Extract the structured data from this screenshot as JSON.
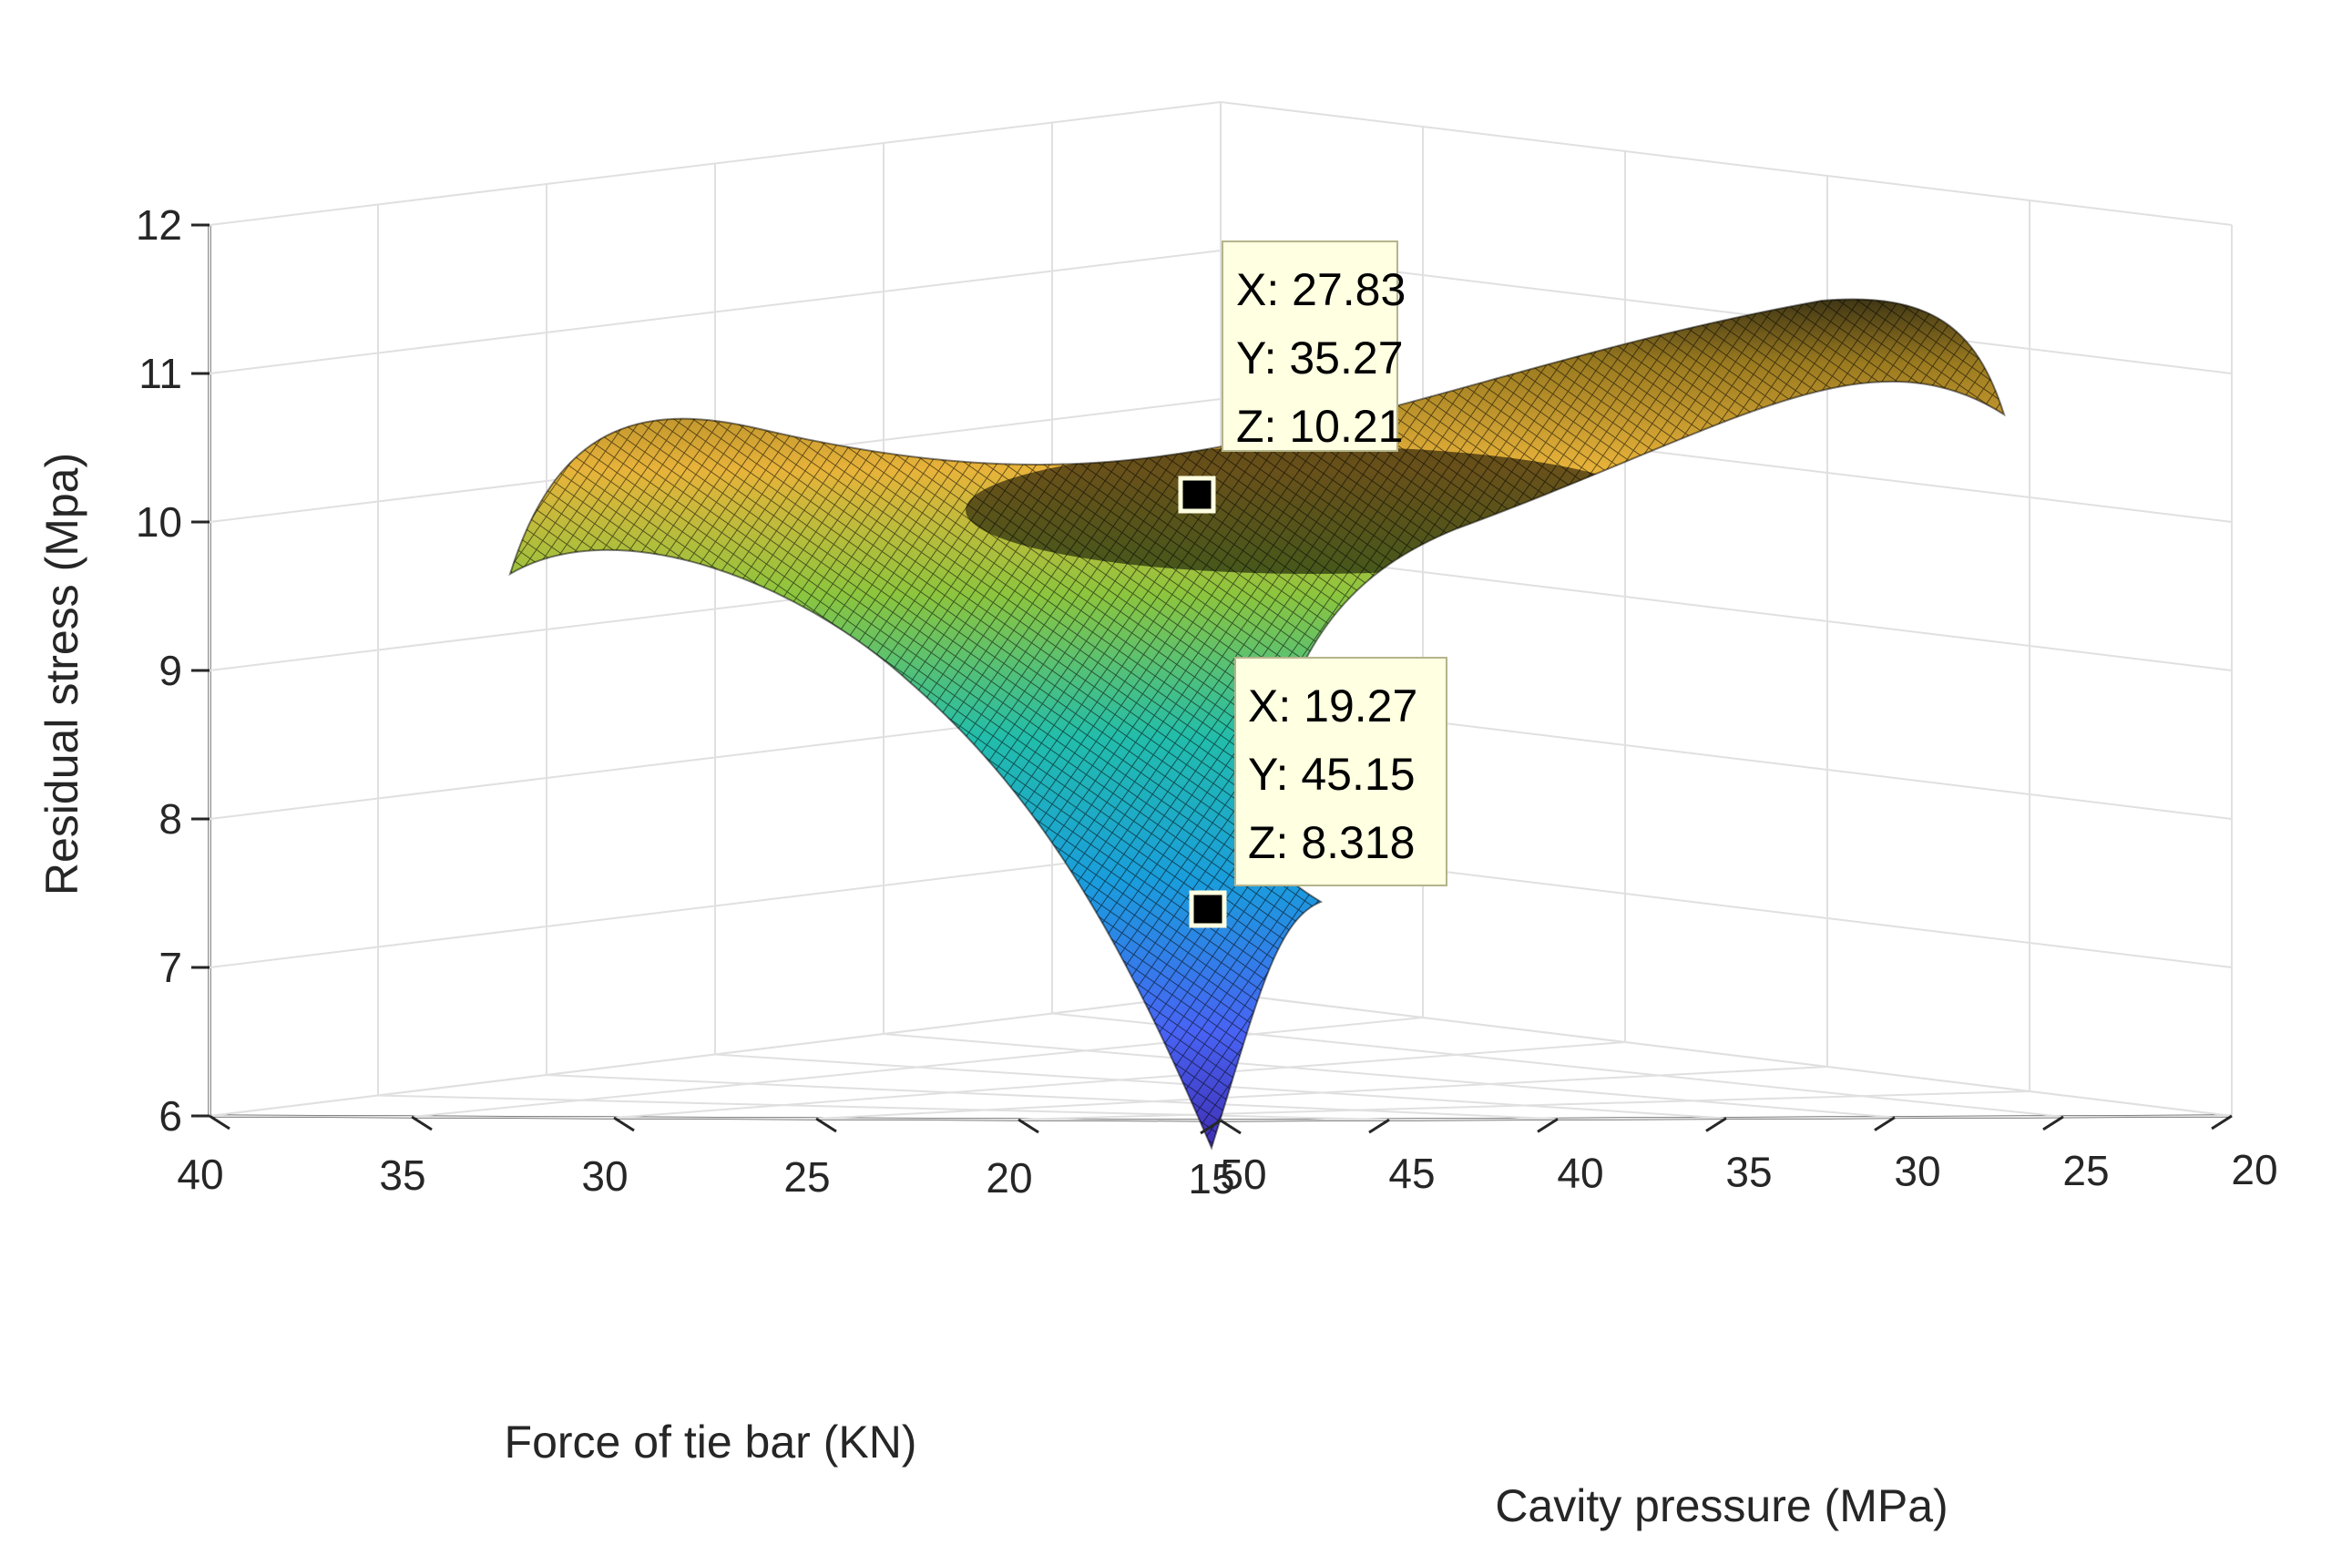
{
  "chart_data": {
    "type": "surface",
    "zlabel": "Residual stress (Mpa)",
    "xlabel": "Cavity pressure (MPa)",
    "ylabel": "Force of tie bar (KN)",
    "x_range": [
      20,
      50
    ],
    "y_range": [
      15,
      40
    ],
    "zlim": [
      6,
      12
    ],
    "z_ticks": [
      "6",
      "7",
      "8",
      "9",
      "10",
      "11",
      "12"
    ],
    "x_ticks": [
      "20",
      "25",
      "30",
      "35",
      "40",
      "45",
      "50"
    ],
    "y_ticks": [
      "15",
      "20",
      "25",
      "30",
      "35",
      "40"
    ],
    "grid": true,
    "colormap": "parula",
    "surface_corners": [
      {
        "x": 50,
        "y": 15,
        "z": 6.3
      },
      {
        "x": 20,
        "y": 15,
        "z": 10.5
      },
      {
        "x": 50,
        "y": 40,
        "z": 9.1
      },
      {
        "x": 20,
        "y": 40,
        "z": 10.3
      }
    ],
    "datatips": [
      {
        "X": "27.83",
        "Y": "35.27",
        "Z": "10.21",
        "x_label": "X: 27.83",
        "y_label": "Y: 35.27",
        "z_label": "Z: 10.21"
      },
      {
        "X": "19.27",
        "Y": "45.15",
        "Z": "8.318",
        "x_label": "X: 19.27",
        "y_label": "Y: 45.15",
        "z_label": "Z: 8.318"
      }
    ]
  }
}
